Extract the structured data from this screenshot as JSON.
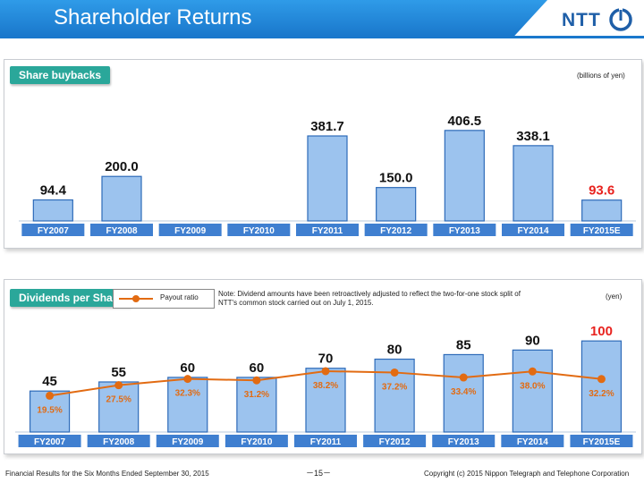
{
  "header": {
    "title": "Shareholder Returns",
    "logo_text": "NTT"
  },
  "buybacks": {
    "label": "Share buybacks",
    "unit": "(billions of yen)"
  },
  "dividends": {
    "label": "Dividends per Share",
    "unit": "(yen)",
    "legend": "Payout ratio",
    "note": "Note: Dividend amounts have been retroactively adjusted to reflect the two-for-one stock split of NTT's common stock carried out on July 1, 2015."
  },
  "footer": {
    "left": "Financial Results for the Six Months Ended September 30, 2015",
    "page": "－15－",
    "right": "Copyright (c) 2015  Nippon Telegraph and Telephone Corporation"
  },
  "colors": {
    "bar_fill": "#9cc3ee",
    "bar_stroke": "#2d6ab8",
    "tick_fill": "#3f7fd0",
    "forecast_label": "#e8231f",
    "payout_line": "#e26b12",
    "section_label": "#2aa79a",
    "header": "#1a78cc"
  },
  "chart_data": [
    {
      "type": "bar",
      "title": "Share buybacks",
      "ylabel": "(billions of yen)",
      "categories": [
        "FY2007",
        "FY2008",
        "FY2009",
        "FY2010",
        "FY2011",
        "FY2012",
        "FY2013",
        "FY2014",
        "FY2015E"
      ],
      "values": [
        94.4,
        200.0,
        null,
        null,
        381.7,
        150.0,
        406.5,
        338.1,
        93.6
      ],
      "labels": [
        "94.4",
        "200.0",
        "",
        "",
        "381.7",
        "150.0",
        "406.5",
        "338.1",
        "93.6"
      ],
      "highlight_last": true,
      "ylim": [
        0,
        450
      ]
    },
    {
      "type": "bar",
      "title": "Dividends per Share",
      "ylabel": "(yen)",
      "categories": [
        "FY2007",
        "FY2008",
        "FY2009",
        "FY2010",
        "FY2011",
        "FY2012",
        "FY2013",
        "FY2014",
        "FY2015E"
      ],
      "values": [
        45,
        55,
        60,
        60,
        70,
        80,
        85,
        90,
        100
      ],
      "labels": [
        "45",
        "55",
        "60",
        "60",
        "70",
        "80",
        "85",
        "90",
        "100"
      ],
      "highlight_last": true,
      "ylim": [
        0,
        110
      ],
      "line_series": {
        "name": "Payout ratio",
        "values": [
          19.5,
          27.5,
          32.3,
          31.2,
          38.2,
          37.2,
          33.4,
          38.0,
          32.2
        ],
        "labels": [
          "19.5%",
          "27.5%",
          "32.3%",
          "31.2%",
          "38.2%",
          "37.2%",
          "33.4%",
          "38.0%",
          "32.2%"
        ]
      }
    }
  ]
}
